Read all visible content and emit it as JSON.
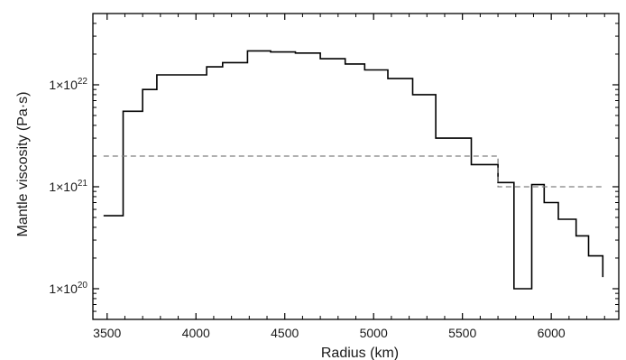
{
  "chart_data": {
    "type": "line",
    "xlabel": "Radius (km)",
    "ylabel": "Mantle viscosity (Pa·s)",
    "x_scale": "linear",
    "y_scale": "log",
    "xlim": [
      3420,
      6380
    ],
    "ylim": [
      5e+19,
      5e+22
    ],
    "xticks": [
      3500,
      4000,
      4500,
      5000,
      5500,
      6000
    ],
    "yticks": [
      {
        "value": 1e+20,
        "mantissa": "1×10",
        "exponent": "20"
      },
      {
        "value": 1e+21,
        "mantissa": "1×10",
        "exponent": "21"
      },
      {
        "value": 1e+22,
        "mantissa": "1×10",
        "exponent": "22"
      }
    ],
    "grid": false,
    "series": [
      {
        "style": "solid-step",
        "color": "#000000",
        "edges": [
          3480,
          3590,
          3700,
          3780,
          3930,
          4060,
          4150,
          4290,
          4420,
          4560,
          4700,
          4840,
          4950,
          5080,
          5220,
          5350,
          5550,
          5700,
          5790,
          5890,
          5960,
          6040,
          6140,
          6210,
          6290
        ],
        "values": [
          5.2e+20,
          5.5e+21,
          9e+21,
          1.25e+22,
          1.25e+22,
          1.5e+22,
          1.65e+22,
          2.15e+22,
          2.1e+22,
          2.05e+22,
          1.8e+22,
          1.6e+22,
          1.4e+22,
          1.15e+22,
          8e+21,
          3e+21,
          1.65e+21,
          1.1e+21,
          1e+20,
          1.05e+21,
          7e+20,
          4.8e+20,
          3.3e+20,
          2.1e+20,
          1.3e+20
        ]
      },
      {
        "style": "dashed-step",
        "color": "#808080",
        "edges": [
          3480,
          5700,
          6290
        ],
        "values": [
          2e+21,
          1e+21,
          1e+21
        ]
      }
    ]
  }
}
